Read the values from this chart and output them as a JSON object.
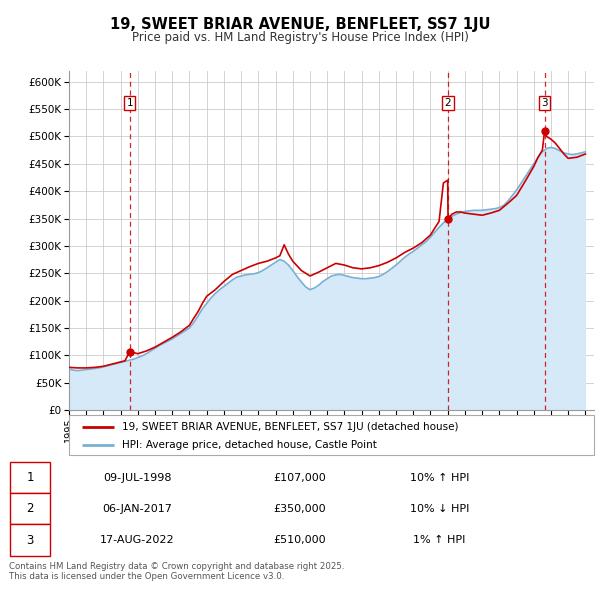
{
  "title": "19, SWEET BRIAR AVENUE, BENFLEET, SS7 1JU",
  "subtitle": "Price paid vs. HM Land Registry's House Price Index (HPI)",
  "ylim": [
    0,
    620000
  ],
  "xlim": [
    1995,
    2025.5
  ],
  "yticks": [
    0,
    50000,
    100000,
    150000,
    200000,
    250000,
    300000,
    350000,
    400000,
    450000,
    500000,
    550000,
    600000
  ],
  "ytick_labels": [
    "£0",
    "£50K",
    "£100K",
    "£150K",
    "£200K",
    "£250K",
    "£300K",
    "£350K",
    "£400K",
    "£450K",
    "£500K",
    "£550K",
    "£600K"
  ],
  "price_paid_color": "#cc0000",
  "hpi_color": "#7ab0d4",
  "hpi_fill_color": "#d6e9f8",
  "vline_color": "#cc0000",
  "bg_color": "#ffffff",
  "grid_color": "#cccccc",
  "sale_events": [
    {
      "num": 1,
      "year": 1998.53,
      "price": 107000,
      "label": "09-JUL-1998",
      "pct": "10%",
      "dir": "↑"
    },
    {
      "num": 2,
      "year": 2017.02,
      "price": 350000,
      "label": "06-JAN-2017",
      "pct": "10%",
      "dir": "↓"
    },
    {
      "num": 3,
      "year": 2022.63,
      "price": 510000,
      "label": "17-AUG-2022",
      "pct": "1%",
      "dir": "↑"
    }
  ],
  "legend_line1": "19, SWEET BRIAR AVENUE, BENFLEET, SS7 1JU (detached house)",
  "legend_line2": "HPI: Average price, detached house, Castle Point",
  "footnote": "Contains HM Land Registry data © Crown copyright and database right 2025.\nThis data is licensed under the Open Government Licence v3.0.",
  "hpi_data": [
    [
      1995.0,
      75000
    ],
    [
      1995.25,
      73000
    ],
    [
      1995.5,
      72000
    ],
    [
      1995.75,
      73000
    ],
    [
      1996.0,
      74000
    ],
    [
      1996.25,
      75000
    ],
    [
      1996.5,
      76000
    ],
    [
      1996.75,
      77000
    ],
    [
      1997.0,
      79000
    ],
    [
      1997.25,
      81000
    ],
    [
      1997.5,
      83000
    ],
    [
      1997.75,
      85000
    ],
    [
      1998.0,
      87000
    ],
    [
      1998.25,
      89000
    ],
    [
      1998.5,
      91000
    ],
    [
      1998.75,
      93000
    ],
    [
      1999.0,
      96000
    ],
    [
      1999.25,
      99000
    ],
    [
      1999.5,
      103000
    ],
    [
      1999.75,
      108000
    ],
    [
      2000.0,
      113000
    ],
    [
      2000.25,
      118000
    ],
    [
      2000.5,
      122000
    ],
    [
      2000.75,
      126000
    ],
    [
      2001.0,
      130000
    ],
    [
      2001.25,
      135000
    ],
    [
      2001.5,
      140000
    ],
    [
      2001.75,
      145000
    ],
    [
      2002.0,
      150000
    ],
    [
      2002.25,
      160000
    ],
    [
      2002.5,
      172000
    ],
    [
      2002.75,
      185000
    ],
    [
      2003.0,
      195000
    ],
    [
      2003.25,
      205000
    ],
    [
      2003.5,
      213000
    ],
    [
      2003.75,
      220000
    ],
    [
      2004.0,
      226000
    ],
    [
      2004.25,
      232000
    ],
    [
      2004.5,
      238000
    ],
    [
      2004.75,
      243000
    ],
    [
      2005.0,
      245000
    ],
    [
      2005.25,
      247000
    ],
    [
      2005.5,
      248000
    ],
    [
      2005.75,
      249000
    ],
    [
      2006.0,
      251000
    ],
    [
      2006.25,
      255000
    ],
    [
      2006.5,
      260000
    ],
    [
      2006.75,
      265000
    ],
    [
      2007.0,
      270000
    ],
    [
      2007.25,
      275000
    ],
    [
      2007.5,
      272000
    ],
    [
      2007.75,
      265000
    ],
    [
      2008.0,
      255000
    ],
    [
      2008.25,
      244000
    ],
    [
      2008.5,
      234000
    ],
    [
      2008.75,
      225000
    ],
    [
      2009.0,
      220000
    ],
    [
      2009.25,
      223000
    ],
    [
      2009.5,
      228000
    ],
    [
      2009.75,
      235000
    ],
    [
      2010.0,
      240000
    ],
    [
      2010.25,
      245000
    ],
    [
      2010.5,
      247000
    ],
    [
      2010.75,
      248000
    ],
    [
      2011.0,
      246000
    ],
    [
      2011.25,
      244000
    ],
    [
      2011.5,
      242000
    ],
    [
      2011.75,
      241000
    ],
    [
      2012.0,
      240000
    ],
    [
      2012.25,
      240000
    ],
    [
      2012.5,
      241000
    ],
    [
      2012.75,
      242000
    ],
    [
      2013.0,
      244000
    ],
    [
      2013.25,
      248000
    ],
    [
      2013.5,
      253000
    ],
    [
      2013.75,
      259000
    ],
    [
      2014.0,
      265000
    ],
    [
      2014.25,
      272000
    ],
    [
      2014.5,
      279000
    ],
    [
      2014.75,
      285000
    ],
    [
      2015.0,
      290000
    ],
    [
      2015.25,
      296000
    ],
    [
      2015.5,
      302000
    ],
    [
      2015.75,
      308000
    ],
    [
      2016.0,
      316000
    ],
    [
      2016.25,
      325000
    ],
    [
      2016.5,
      334000
    ],
    [
      2016.75,
      342000
    ],
    [
      2017.0,
      349000
    ],
    [
      2017.25,
      354000
    ],
    [
      2017.5,
      358000
    ],
    [
      2017.75,
      361000
    ],
    [
      2018.0,
      363000
    ],
    [
      2018.25,
      364000
    ],
    [
      2018.5,
      365000
    ],
    [
      2018.75,
      365000
    ],
    [
      2019.0,
      365000
    ],
    [
      2019.25,
      366000
    ],
    [
      2019.5,
      367000
    ],
    [
      2019.75,
      368000
    ],
    [
      2020.0,
      370000
    ],
    [
      2020.25,
      374000
    ],
    [
      2020.5,
      382000
    ],
    [
      2020.75,
      392000
    ],
    [
      2021.0,
      402000
    ],
    [
      2021.25,
      414000
    ],
    [
      2021.5,
      426000
    ],
    [
      2021.75,
      438000
    ],
    [
      2022.0,
      450000
    ],
    [
      2022.25,
      462000
    ],
    [
      2022.5,
      472000
    ],
    [
      2022.75,
      478000
    ],
    [
      2023.0,
      480000
    ],
    [
      2023.25,
      478000
    ],
    [
      2023.5,
      474000
    ],
    [
      2023.75,
      470000
    ],
    [
      2024.0,
      468000
    ],
    [
      2024.25,
      467000
    ],
    [
      2024.5,
      468000
    ],
    [
      2024.75,
      470000
    ],
    [
      2025.0,
      472000
    ]
  ],
  "price_data": [
    [
      1995.0,
      78000
    ],
    [
      1995.5,
      77000
    ],
    [
      1996.0,
      77000
    ],
    [
      1996.5,
      78000
    ],
    [
      1997.0,
      80000
    ],
    [
      1997.5,
      84000
    ],
    [
      1998.0,
      88000
    ],
    [
      1998.25,
      90000
    ],
    [
      1998.53,
      107000
    ],
    [
      1998.75,
      105000
    ],
    [
      1999.0,
      103000
    ],
    [
      1999.5,
      108000
    ],
    [
      2000.0,
      115000
    ],
    [
      2000.5,
      124000
    ],
    [
      2001.0,
      133000
    ],
    [
      2001.5,
      143000
    ],
    [
      2002.0,
      155000
    ],
    [
      2002.25,
      168000
    ],
    [
      2002.5,
      180000
    ],
    [
      2002.75,
      195000
    ],
    [
      2003.0,
      208000
    ],
    [
      2003.5,
      220000
    ],
    [
      2004.0,
      235000
    ],
    [
      2004.5,
      248000
    ],
    [
      2005.0,
      255000
    ],
    [
      2005.5,
      262000
    ],
    [
      2006.0,
      268000
    ],
    [
      2006.5,
      272000
    ],
    [
      2007.0,
      278000
    ],
    [
      2007.25,
      282000
    ],
    [
      2007.5,
      302000
    ],
    [
      2007.75,
      285000
    ],
    [
      2008.0,
      272000
    ],
    [
      2008.5,
      255000
    ],
    [
      2009.0,
      245000
    ],
    [
      2009.5,
      252000
    ],
    [
      2010.0,
      260000
    ],
    [
      2010.5,
      268000
    ],
    [
      2011.0,
      265000
    ],
    [
      2011.5,
      260000
    ],
    [
      2012.0,
      258000
    ],
    [
      2012.5,
      260000
    ],
    [
      2013.0,
      264000
    ],
    [
      2013.5,
      270000
    ],
    [
      2014.0,
      278000
    ],
    [
      2014.5,
      288000
    ],
    [
      2015.0,
      296000
    ],
    [
      2015.5,
      306000
    ],
    [
      2016.0,
      320000
    ],
    [
      2016.5,
      345000
    ],
    [
      2016.75,
      415000
    ],
    [
      2017.0,
      420000
    ],
    [
      2017.02,
      350000
    ],
    [
      2017.25,
      358000
    ],
    [
      2017.5,
      362000
    ],
    [
      2017.75,
      362000
    ],
    [
      2018.0,
      360000
    ],
    [
      2018.5,
      358000
    ],
    [
      2019.0,
      356000
    ],
    [
      2019.5,
      360000
    ],
    [
      2020.0,
      365000
    ],
    [
      2020.5,
      378000
    ],
    [
      2021.0,
      392000
    ],
    [
      2021.5,
      418000
    ],
    [
      2022.0,
      445000
    ],
    [
      2022.25,
      462000
    ],
    [
      2022.5,
      475000
    ],
    [
      2022.63,
      510000
    ],
    [
      2022.75,
      500000
    ],
    [
      2023.0,
      495000
    ],
    [
      2023.25,
      488000
    ],
    [
      2023.5,
      478000
    ],
    [
      2023.75,
      468000
    ],
    [
      2024.0,
      460000
    ],
    [
      2024.5,
      462000
    ],
    [
      2025.0,
      468000
    ]
  ]
}
